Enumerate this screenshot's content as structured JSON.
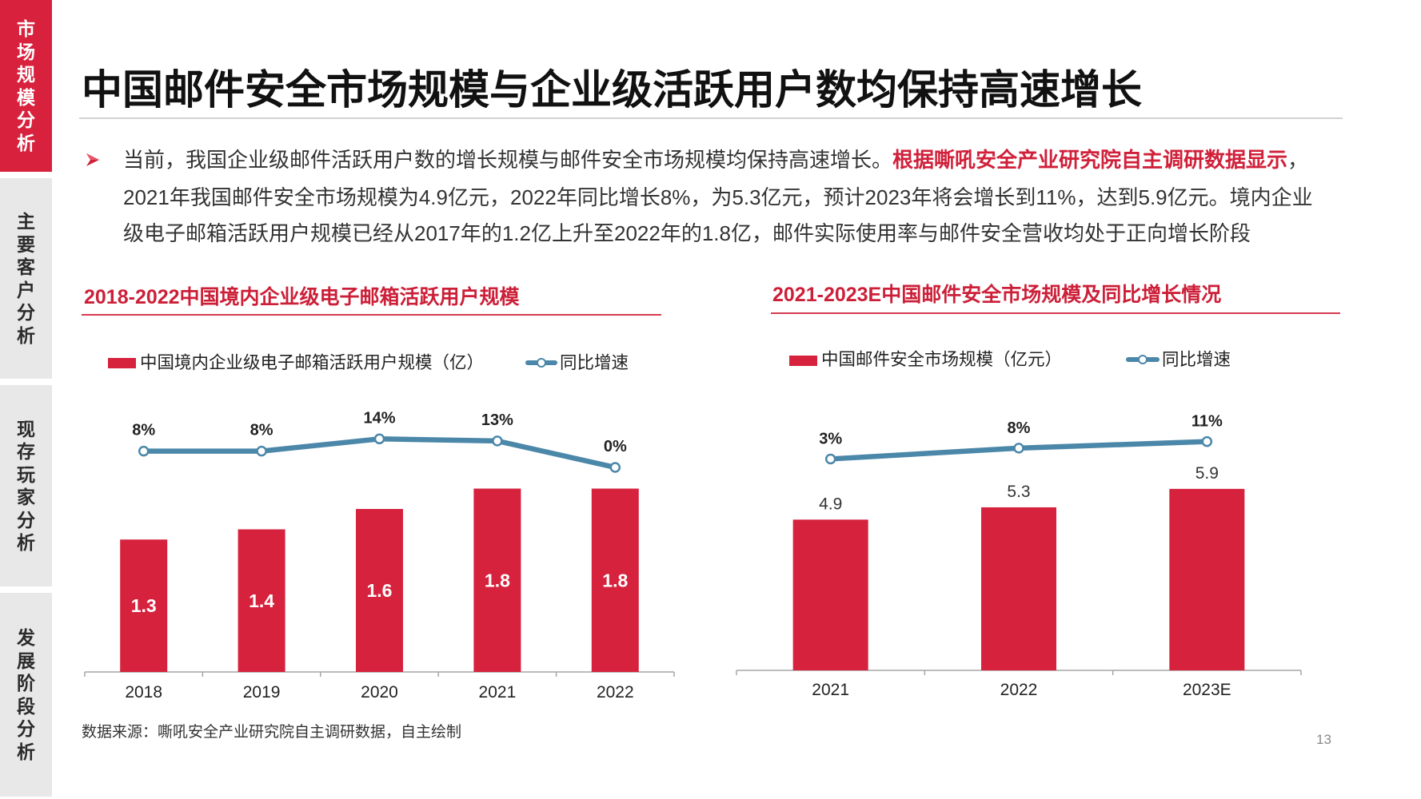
{
  "sidebar": {
    "tabs": [
      {
        "label": "市场规模分析",
        "active": true
      },
      {
        "label": "主要客户分析",
        "active": false
      },
      {
        "label": "现存玩家分析",
        "active": false
      },
      {
        "label": "发展阶段分析",
        "active": false
      }
    ],
    "active_color": "#d7213d"
  },
  "title": "中国邮件安全市场规模与企业级活跃用户数均保持高速增长",
  "summary": {
    "bullet_icon": "arrow-bullet-icon",
    "line1": {
      "text": "当前，我国企业级邮件活跃用户数的增长规模与邮件安全市场规模均保持高速增长。",
      "highlight": "根据嘶吼安全产业研究院自主调研数据显示",
      "tail": "，"
    },
    "line2": "2021年我国邮件安全市场规模为4.9亿元，2022年同比增长8%，为5.3亿元，预计2023年将会增长到11%，达到5.9亿元。境内企业",
    "line3": "级电子邮箱活跃用户规模已经从2017年的1.2亿上升至2022年的1.8亿，邮件实际使用率与邮件安全营收均处于正向增长阶段",
    "highlight_color": "#d0203a"
  },
  "chart_data": [
    {
      "type": "bar",
      "title": "2018-2022中国境内企业级电子邮箱活跃用户规模",
      "categories": [
        "2018",
        "2019",
        "2020",
        "2021",
        "2022"
      ],
      "series": [
        {
          "name": "中国境内企业级电子邮箱活跃用户规模（亿）",
          "type": "bar",
          "values": [
            1.3,
            1.4,
            1.6,
            1.8,
            1.8
          ],
          "color": "#d6223d"
        },
        {
          "name": "同比增速",
          "type": "line",
          "values": [
            8,
            8,
            14,
            13,
            0
          ],
          "color": "#4b87a9"
        }
      ],
      "data_labels": {
        "bar": "inside",
        "line": "above"
      },
      "legend": "top",
      "grid": false
    },
    {
      "type": "bar",
      "title": "2021-2023E中国邮件安全市场规模及同比增长情况",
      "categories": [
        "2021",
        "2022",
        "2023E"
      ],
      "series": [
        {
          "name": "中国邮件安全市场规模（亿元）",
          "type": "bar",
          "values": [
            4.9,
            5.3,
            5.9
          ],
          "color": "#d6223d"
        },
        {
          "name": "同比增速",
          "type": "line",
          "values": [
            3,
            8,
            11
          ],
          "color": "#4b87a9"
        }
      ],
      "data_labels": {
        "bar": "above",
        "line": "above"
      },
      "legend": "top",
      "grid": false
    }
  ],
  "footer": {
    "source": "数据来源：嘶吼安全产业研究院自主调研数据，自主绘制",
    "page_number": "13"
  }
}
